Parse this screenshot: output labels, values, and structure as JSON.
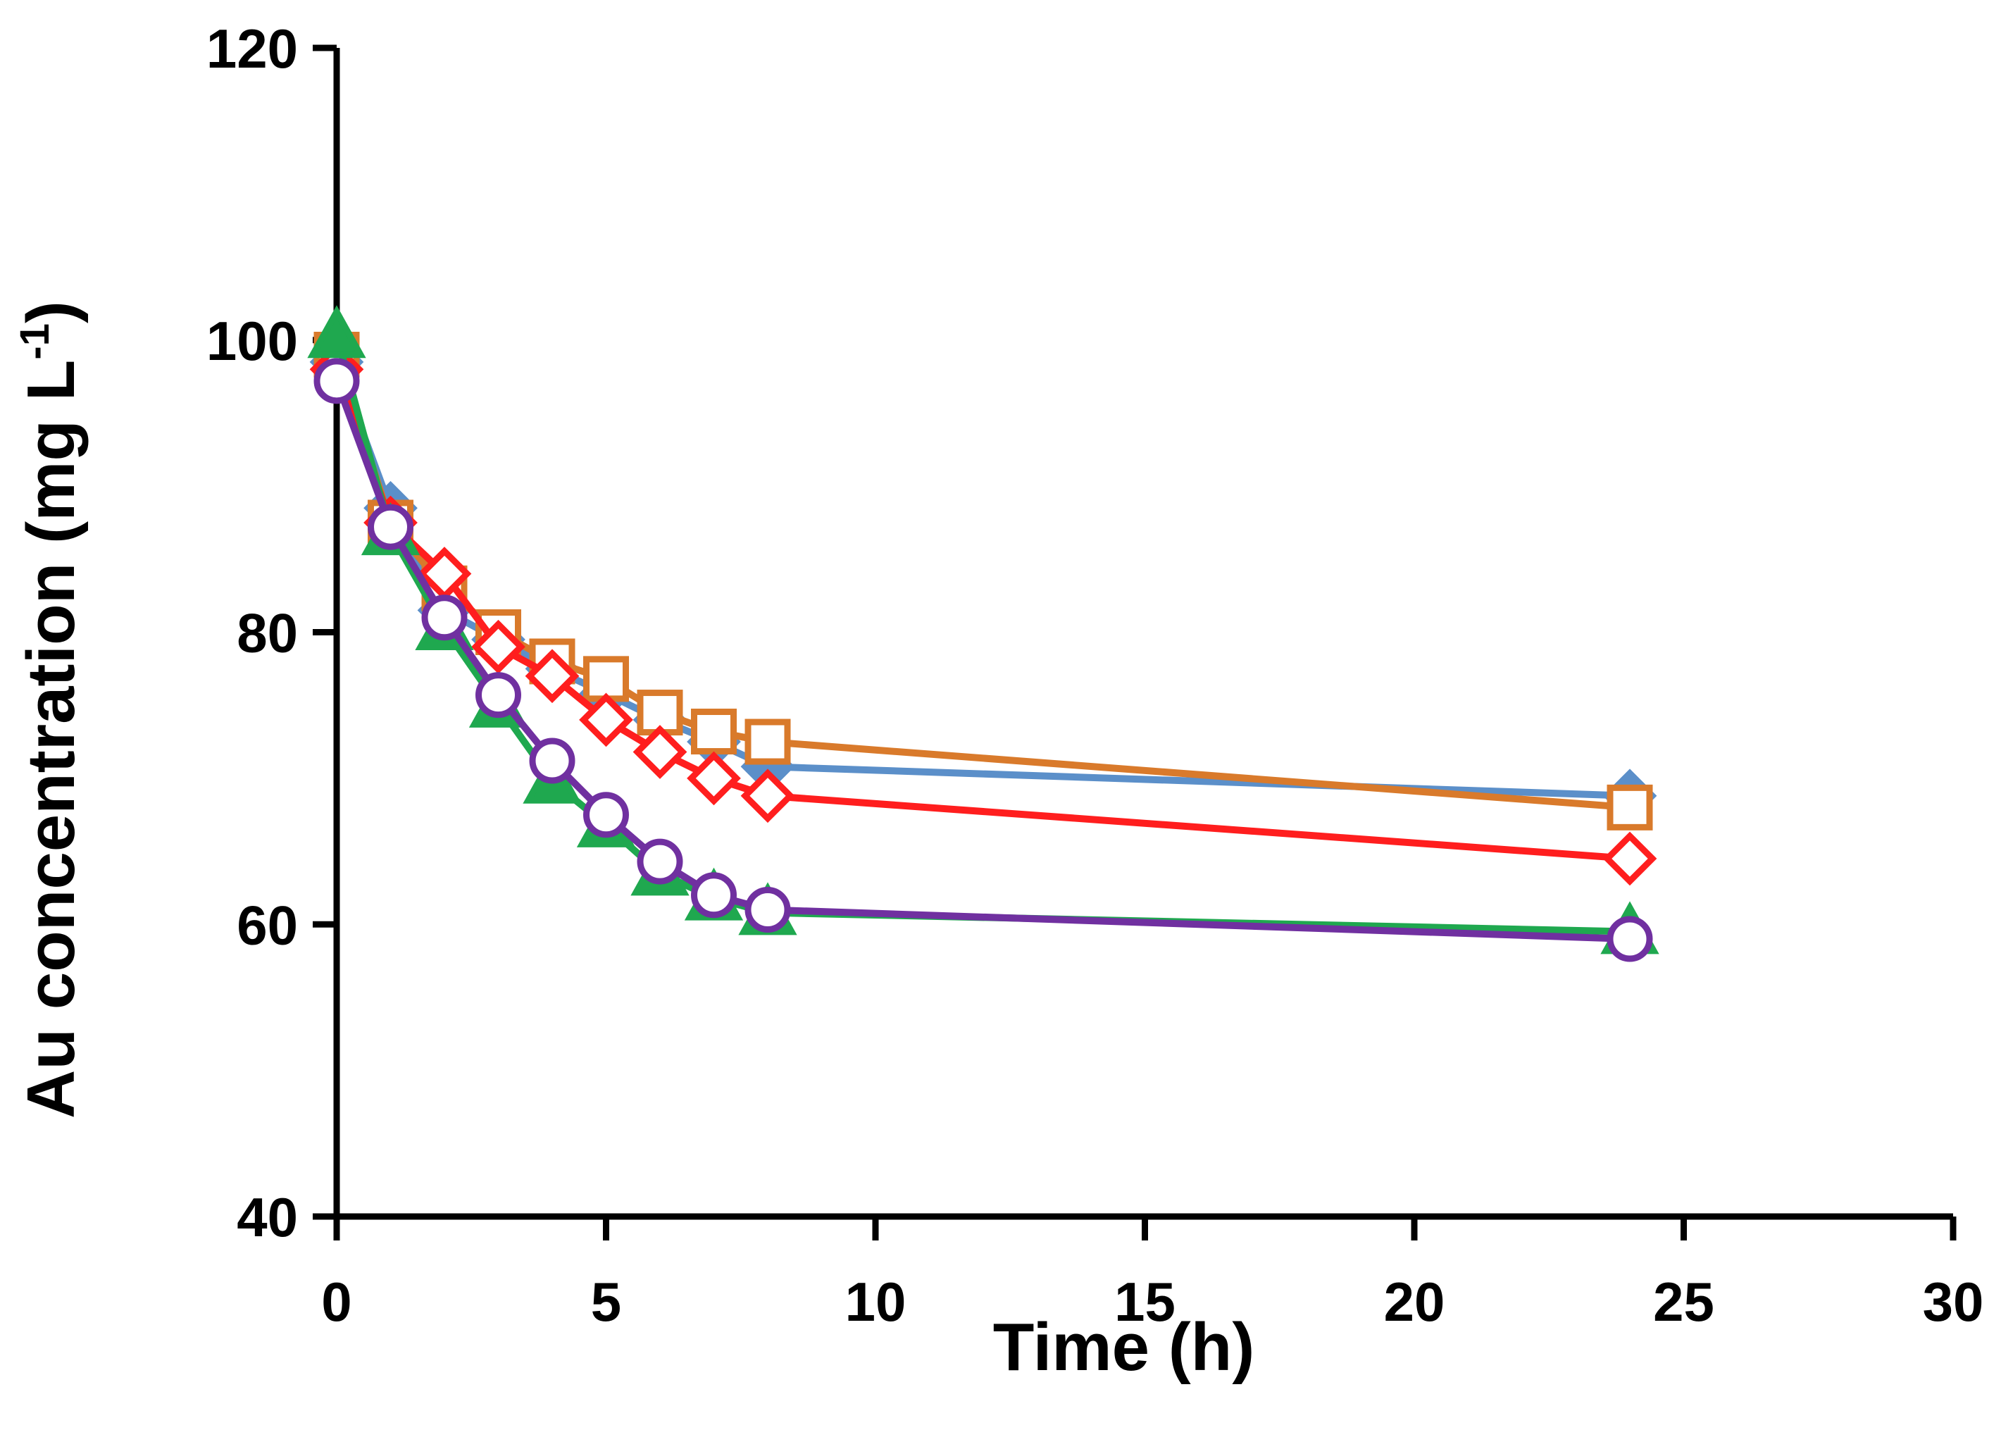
{
  "chart_data": {
    "type": "line",
    "title": "",
    "xlabel": "Time (h)",
    "ylabel_main": "Au concentration (mg L",
    "ylabel_sup": "-1",
    "ylabel_close": ")",
    "xlim": [
      0,
      30
    ],
    "ylim": [
      40,
      120
    ],
    "xticks": [
      0,
      5,
      10,
      15,
      20,
      25,
      30
    ],
    "xtick_labels": [
      "0",
      "5",
      "10",
      "15",
      "20",
      "25",
      "30"
    ],
    "yticks": [
      40,
      60,
      80,
      100,
      120
    ],
    "ytick_labels": [
      "40",
      "60",
      "80",
      "100",
      "120"
    ],
    "grid": false,
    "legend": "none",
    "x": [
      0,
      1,
      2,
      3,
      4,
      5,
      6,
      7,
      8,
      24
    ],
    "series": [
      {
        "name": "blue diamond series",
        "color": "#5B8FC9",
        "marker": "diamond",
        "filled": true,
        "values": [
          98.5,
          88.5,
          81.5,
          79.5,
          77.5,
          75.8,
          74.0,
          72.5,
          70.8,
          68.8
        ]
      },
      {
        "name": "orange square series",
        "color": "#D97A2B",
        "marker": "square",
        "filled": false,
        "values": [
          99.0,
          87.5,
          83.0,
          80.0,
          78.0,
          76.8,
          74.5,
          73.2,
          72.5,
          68.0
        ]
      },
      {
        "name": "red diamond series",
        "color": "#FF1E1E",
        "marker": "diamond",
        "filled": false,
        "values": [
          98.0,
          87.5,
          84.0,
          79.0,
          77.0,
          74.0,
          71.8,
          70.0,
          68.8,
          64.5
        ]
      },
      {
        "name": "green triangle series",
        "color": "#1FA84F",
        "marker": "triangle",
        "filled": true,
        "values": [
          100.3,
          86.8,
          80.3,
          75.0,
          69.8,
          66.8,
          63.5,
          61.8,
          60.8,
          59.5
        ]
      },
      {
        "name": "purple circle series",
        "color": "#7030A0",
        "marker": "circle",
        "filled": false,
        "values": [
          97.2,
          87.2,
          81.0,
          75.7,
          71.2,
          67.5,
          64.3,
          62.0,
          61.0,
          59.0
        ]
      }
    ]
  }
}
